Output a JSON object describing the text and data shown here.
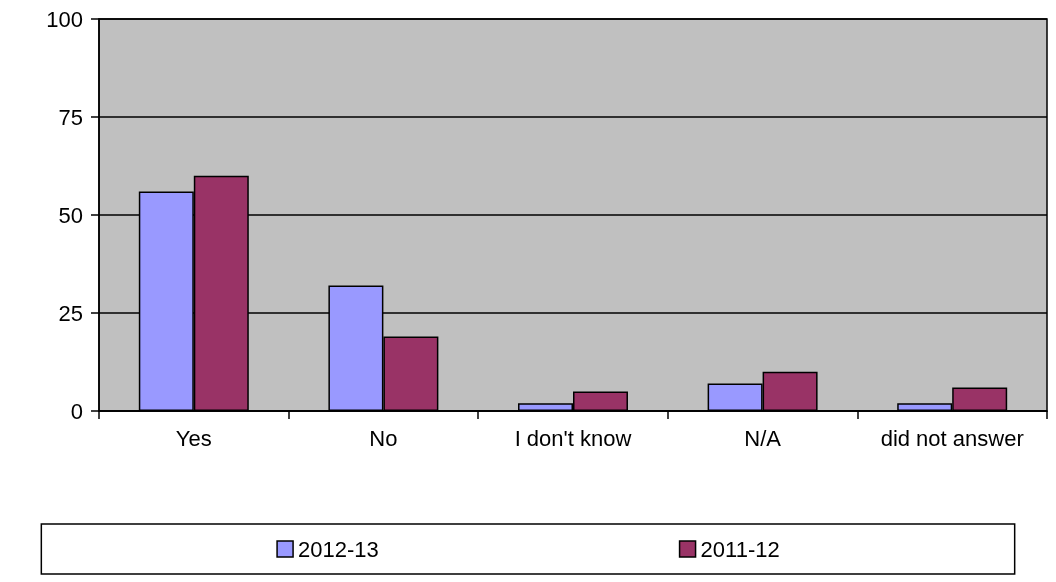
{
  "chart_data": {
    "type": "bar",
    "categories": [
      "Yes",
      "No",
      "I don't know",
      "N/A",
      "did not answer"
    ],
    "series": [
      {
        "name": "2012-13",
        "color": "#9999ff",
        "values": [
          56,
          32,
          2,
          7,
          2
        ]
      },
      {
        "name": "2011-12",
        "color": "#993366",
        "values": [
          60,
          19,
          5,
          10,
          6
        ]
      }
    ],
    "ylim": [
      0,
      100
    ],
    "yticks": [
      0,
      25,
      50,
      75,
      100
    ],
    "grid": "y",
    "legend": "bottom"
  }
}
